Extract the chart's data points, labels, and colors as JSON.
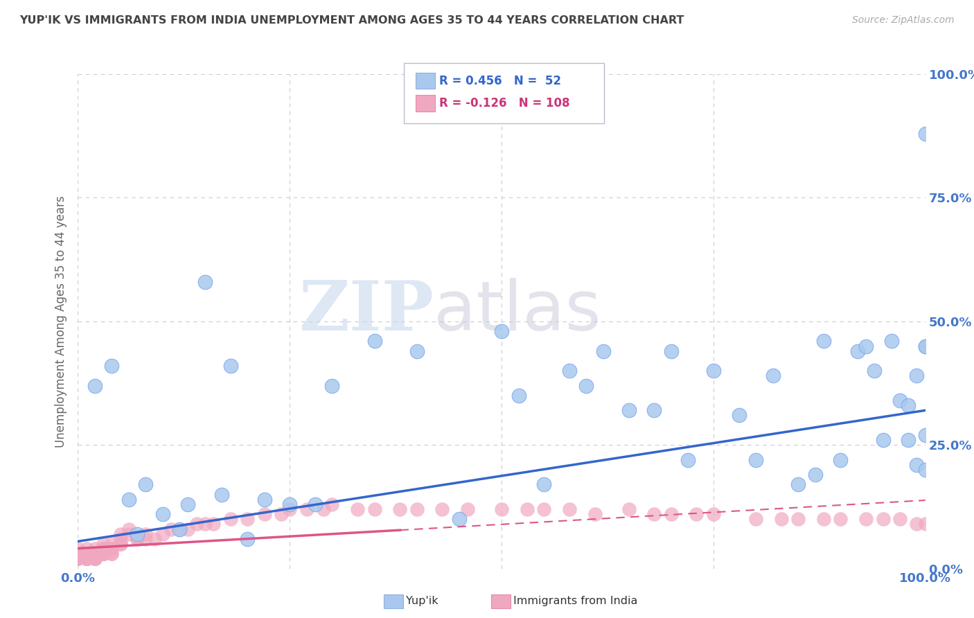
{
  "title": "YUP'IK VS IMMIGRANTS FROM INDIA UNEMPLOYMENT AMONG AGES 35 TO 44 YEARS CORRELATION CHART",
  "source": "Source: ZipAtlas.com",
  "ylabel": "Unemployment Among Ages 35 to 44 years",
  "xlim": [
    0,
    1
  ],
  "ylim": [
    0,
    1
  ],
  "xticks": [
    0,
    0.25,
    0.5,
    0.75,
    1.0
  ],
  "yticks": [
    0,
    0.25,
    0.5,
    0.75,
    1.0
  ],
  "xticklabels": [
    "0.0%",
    "",
    "",
    "",
    "100.0%"
  ],
  "yticklabels": [
    "0.0%",
    "25.0%",
    "50.0%",
    "75.0%",
    "100.0%"
  ],
  "blue_color": "#aac8ee",
  "pink_color": "#f0a8c0",
  "blue_line_color": "#3366cc",
  "pink_line_color": "#dd5588",
  "watermark_ZIP": "ZIP",
  "watermark_atlas": "atlas",
  "legend_R_blue": "R = 0.456",
  "legend_N_blue": "N =  52",
  "legend_R_pink": "R = -0.126",
  "legend_N_pink": "N = 108",
  "blue_scatter_x": [
    0.02,
    0.04,
    0.06,
    0.07,
    0.08,
    0.1,
    0.12,
    0.13,
    0.15,
    0.17,
    0.18,
    0.2,
    0.22,
    0.25,
    0.28,
    0.3,
    0.35,
    0.4,
    0.45,
    0.5,
    0.52,
    0.55,
    0.58,
    0.6,
    0.62,
    0.65,
    0.68,
    0.7,
    0.72,
    0.75,
    0.78,
    0.8,
    0.82,
    0.85,
    0.87,
    0.88,
    0.9,
    0.92,
    0.93,
    0.94,
    0.95,
    0.96,
    0.97,
    0.98,
    0.98,
    0.99,
    0.99,
    1.0,
    1.0,
    1.0,
    1.0,
    1.0
  ],
  "blue_scatter_y": [
    0.37,
    0.41,
    0.14,
    0.07,
    0.17,
    0.11,
    0.08,
    0.13,
    0.58,
    0.15,
    0.41,
    0.06,
    0.14,
    0.13,
    0.13,
    0.37,
    0.46,
    0.44,
    0.1,
    0.48,
    0.35,
    0.17,
    0.4,
    0.37,
    0.44,
    0.32,
    0.32,
    0.44,
    0.22,
    0.4,
    0.31,
    0.22,
    0.39,
    0.17,
    0.19,
    0.46,
    0.22,
    0.44,
    0.45,
    0.4,
    0.26,
    0.46,
    0.34,
    0.33,
    0.26,
    0.21,
    0.39,
    0.45,
    0.45,
    0.27,
    0.2,
    0.88
  ],
  "pink_scatter_x": [
    0.0,
    0.0,
    0.0,
    0.0,
    0.0,
    0.0,
    0.0,
    0.0,
    0.0,
    0.01,
    0.01,
    0.01,
    0.01,
    0.01,
    0.01,
    0.01,
    0.01,
    0.01,
    0.01,
    0.01,
    0.01,
    0.01,
    0.01,
    0.01,
    0.01,
    0.01,
    0.01,
    0.02,
    0.02,
    0.02,
    0.02,
    0.02,
    0.02,
    0.02,
    0.02,
    0.02,
    0.02,
    0.02,
    0.02,
    0.03,
    0.03,
    0.03,
    0.03,
    0.03,
    0.03,
    0.03,
    0.03,
    0.03,
    0.03,
    0.03,
    0.04,
    0.04,
    0.04,
    0.04,
    0.04,
    0.04,
    0.05,
    0.05,
    0.05,
    0.05,
    0.06,
    0.06,
    0.07,
    0.07,
    0.08,
    0.08,
    0.09,
    0.1,
    0.11,
    0.12,
    0.13,
    0.14,
    0.15,
    0.16,
    0.18,
    0.2,
    0.22,
    0.24,
    0.25,
    0.27,
    0.29,
    0.3,
    0.33,
    0.35,
    0.38,
    0.4,
    0.43,
    0.46,
    0.5,
    0.53,
    0.55,
    0.58,
    0.61,
    0.65,
    0.68,
    0.7,
    0.73,
    0.75,
    0.8,
    0.83,
    0.85,
    0.88,
    0.9,
    0.93,
    0.95,
    0.97,
    0.99,
    1.0
  ],
  "pink_scatter_y": [
    0.04,
    0.03,
    0.03,
    0.03,
    0.02,
    0.02,
    0.02,
    0.02,
    0.02,
    0.04,
    0.03,
    0.03,
    0.03,
    0.02,
    0.02,
    0.02,
    0.02,
    0.02,
    0.02,
    0.02,
    0.02,
    0.02,
    0.02,
    0.02,
    0.02,
    0.02,
    0.02,
    0.04,
    0.03,
    0.03,
    0.03,
    0.02,
    0.02,
    0.02,
    0.02,
    0.02,
    0.02,
    0.02,
    0.02,
    0.05,
    0.04,
    0.04,
    0.04,
    0.03,
    0.03,
    0.03,
    0.03,
    0.03,
    0.03,
    0.03,
    0.05,
    0.04,
    0.04,
    0.04,
    0.03,
    0.03,
    0.07,
    0.06,
    0.05,
    0.05,
    0.08,
    0.07,
    0.06,
    0.06,
    0.07,
    0.06,
    0.06,
    0.07,
    0.08,
    0.08,
    0.08,
    0.09,
    0.09,
    0.09,
    0.1,
    0.1,
    0.11,
    0.11,
    0.12,
    0.12,
    0.12,
    0.13,
    0.12,
    0.12,
    0.12,
    0.12,
    0.12,
    0.12,
    0.12,
    0.12,
    0.12,
    0.12,
    0.11,
    0.12,
    0.11,
    0.11,
    0.11,
    0.11,
    0.1,
    0.1,
    0.1,
    0.1,
    0.1,
    0.1,
    0.1,
    0.1,
    0.09,
    0.09
  ],
  "background_color": "#ffffff",
  "grid_color": "#cccccc",
  "title_color": "#444444",
  "axis_label_color": "#666666",
  "tick_color_blue": "#4477cc",
  "pink_trend_solid_end": 0.38,
  "blue_line_start_y": 0.055,
  "blue_line_end_y": 0.32
}
